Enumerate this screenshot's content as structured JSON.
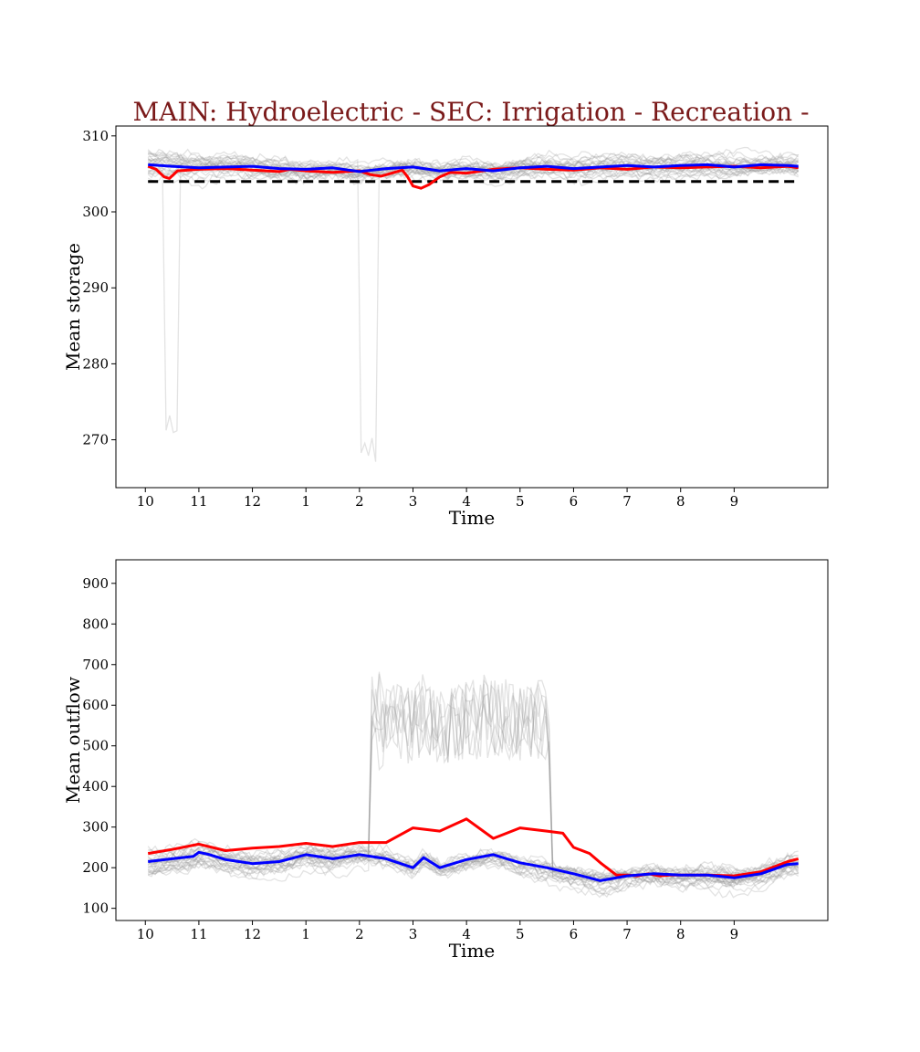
{
  "figure": {
    "title": "MAIN: Hydroelectric - SEC: Irrigation - Recreation -",
    "title_color": "#7a1a1a"
  },
  "chart_data": [
    {
      "type": "line",
      "xlabel": "Time",
      "ylabel": "Mean storage",
      "x_ticks": [
        "10",
        "11",
        "12",
        "1",
        "2",
        "3",
        "4",
        "5",
        "6",
        "7",
        "8",
        "9"
      ],
      "y_ticks": [
        270,
        280,
        290,
        300,
        310
      ],
      "xlim": [
        -0.55,
        12.75
      ],
      "ylim": [
        263.7,
        311.3
      ],
      "grid": false,
      "reference_line": {
        "value": 304,
        "color": "#000000",
        "style": "dashed"
      },
      "ensemble_color": "#9a9a9a",
      "series": [
        {
          "color": "#ff0000",
          "x": [
            0.05,
            0.2,
            0.35,
            0.45,
            0.6,
            0.8,
            1.0,
            1.5,
            2.0,
            2.5,
            2.7,
            3.0,
            3.5,
            4.0,
            4.2,
            4.4,
            4.8,
            4.9,
            5.0,
            5.15,
            5.3,
            5.5,
            5.7,
            6.0,
            6.5,
            7.0,
            7.5,
            8.0,
            8.5,
            9.0,
            9.5,
            10.0,
            10.5,
            11.0,
            11.5,
            12.0,
            12.2
          ],
          "y": [
            306,
            305.6,
            304.6,
            304.4,
            305.4,
            305.5,
            305.6,
            305.7,
            305.5,
            305.3,
            305.6,
            305.4,
            305.2,
            305.4,
            304.9,
            304.7,
            305.5,
            304.6,
            303.4,
            303.1,
            303.6,
            304.6,
            305.2,
            305.1,
            305.6,
            305.8,
            305.6,
            305.5,
            305.8,
            305.6,
            305.9,
            305.8,
            305.9,
            306.0,
            305.8,
            306.0,
            305.8
          ]
        },
        {
          "color": "#0000ff",
          "x": [
            0.05,
            0.5,
            1.0,
            1.5,
            2.0,
            2.5,
            3.0,
            3.5,
            4.0,
            4.5,
            5.0,
            5.5,
            6.0,
            6.5,
            7.0,
            7.5,
            8.0,
            8.5,
            9.0,
            9.5,
            10.0,
            10.5,
            11.0,
            11.5,
            12.0,
            12.2
          ],
          "y": [
            306.2,
            306.0,
            305.8,
            305.9,
            306.0,
            305.7,
            305.6,
            305.8,
            305.3,
            305.7,
            305.9,
            305.4,
            305.7,
            305.4,
            305.8,
            306.0,
            305.7,
            305.9,
            306.1,
            305.9,
            306.1,
            306.2,
            305.9,
            306.2,
            306.1,
            306.0
          ]
        }
      ]
    },
    {
      "type": "line",
      "xlabel": "Time",
      "ylabel": "Mean outflow",
      "x_ticks": [
        "10",
        "11",
        "12",
        "1",
        "2",
        "3",
        "4",
        "5",
        "6",
        "7",
        "8",
        "9"
      ],
      "y_ticks": [
        100,
        200,
        300,
        400,
        500,
        600,
        700,
        800,
        900
      ],
      "xlim": [
        -0.55,
        12.75
      ],
      "ylim": [
        70,
        958
      ],
      "grid": false,
      "ensemble_color": "#9a9a9a",
      "series": [
        {
          "color": "#ff0000",
          "x": [
            0.05,
            0.5,
            1.0,
            1.5,
            2.0,
            2.5,
            3.0,
            3.5,
            4.0,
            4.5,
            5.0,
            5.5,
            6.0,
            6.5,
            7.0,
            7.5,
            7.8,
            8.0,
            8.3,
            8.5,
            8.8,
            9.0,
            9.2,
            9.4,
            9.6,
            9.8,
            10.0,
            10.5,
            11.0,
            11.5,
            12.0,
            12.2
          ],
          "y": [
            235,
            245,
            258,
            242,
            248,
            252,
            260,
            252,
            262,
            262,
            298,
            290,
            320,
            272,
            298,
            290,
            285,
            250,
            235,
            212,
            182,
            182,
            180,
            185,
            180,
            182,
            182,
            182,
            180,
            190,
            215,
            222
          ]
        },
        {
          "color": "#0000ff",
          "x": [
            0.05,
            0.5,
            0.9,
            1.0,
            1.2,
            1.5,
            2.0,
            2.5,
            3.0,
            3.5,
            4.0,
            4.5,
            5.0,
            5.2,
            5.5,
            6.0,
            6.5,
            7.0,
            7.5,
            8.0,
            8.5,
            9.0,
            9.5,
            10.0,
            10.5,
            11.0,
            11.5,
            12.0,
            12.2
          ],
          "y": [
            215,
            222,
            228,
            238,
            232,
            220,
            210,
            215,
            232,
            222,
            232,
            222,
            200,
            225,
            200,
            220,
            232,
            212,
            200,
            185,
            168,
            180,
            185,
            182,
            182,
            175,
            185,
            208,
            210
          ]
        }
      ]
    }
  ]
}
